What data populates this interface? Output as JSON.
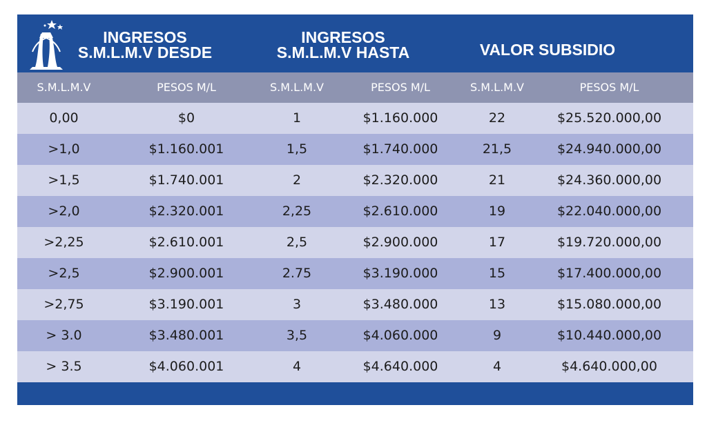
{
  "header": {
    "desde_line1": "INGRESOS",
    "desde_line2": "S.M.L.M.V  DESDE",
    "hasta_line1": "INGRESOS",
    "hasta_line2": "S.M.L.M.V HASTA",
    "subsidio": "VALOR  SUBSIDIO"
  },
  "subheader": [
    "S.M.L.M.V",
    "PESOS M/L",
    "S.M.L.M.V",
    "PESOS M/L",
    "S.M.L.M.V",
    "PESOS M/L"
  ],
  "rows": [
    [
      "0,00",
      "$0",
      "1",
      "$1.160.000",
      "22",
      "$25.520.000,00"
    ],
    [
      ">1,0",
      "$1.160.001",
      "1,5",
      "$1.740.000",
      "21,5",
      "$24.940.000,00"
    ],
    [
      ">1,5",
      "$1.740.001",
      "2",
      "$2.320.000",
      "21",
      "$24.360.000,00"
    ],
    [
      ">2,0",
      "$2.320.001",
      "2,25",
      "$2.610.000",
      "19",
      "$22.040.000,00"
    ],
    [
      ">2,25",
      "$2.610.001",
      "2,5",
      "$2.900.000",
      "17",
      "$19.720.000,00"
    ],
    [
      ">2,5",
      "$2.900.001",
      "2.75",
      "$3.190.000",
      "15",
      "$17.400.000,00"
    ],
    [
      ">2,75",
      "$3.190.001",
      "3",
      "$3.480.000",
      "13",
      "$15.080.000,00"
    ],
    [
      "> 3.0",
      "$3.480.001",
      "3,5",
      "$4.060.000",
      "9",
      "$10.440.000,00"
    ],
    [
      "> 3.5",
      "$4.060.001",
      "4",
      "$4.640.000",
      "4",
      "$4.640.000,00"
    ]
  ],
  "colors": {
    "header_bg": "#1f4f9a",
    "subheader_bg": "#8e94b1",
    "row_light": "#d2d5ea",
    "row_dark": "#aab1da"
  },
  "icons": {
    "logo": "monument-star-logo-icon"
  }
}
